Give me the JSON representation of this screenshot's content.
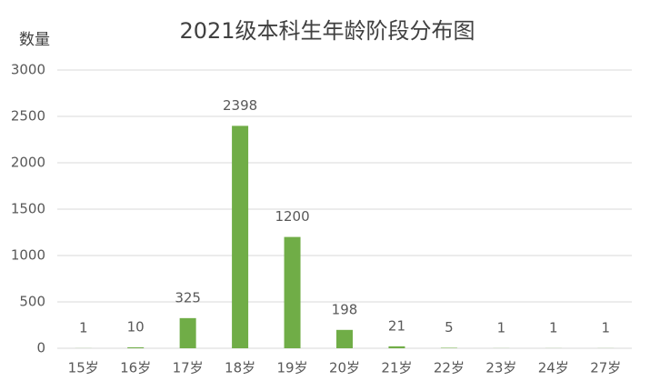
{
  "chart_data": {
    "type": "bar",
    "title": "2021级本科生年龄阶段分布图",
    "y_label": "数量",
    "categories": [
      "15岁",
      "16岁",
      "17岁",
      "18岁",
      "19岁",
      "20岁",
      "21岁",
      "22岁",
      "23岁",
      "24岁",
      "27岁"
    ],
    "values": [
      1,
      10,
      325,
      2398,
      1200,
      198,
      21,
      5,
      1,
      1,
      1
    ],
    "color": "#70ad47",
    "ylim": [
      0,
      3000
    ],
    "yticks": [
      0,
      500,
      1000,
      1500,
      2000,
      2500,
      3000
    ],
    "grid": true
  }
}
